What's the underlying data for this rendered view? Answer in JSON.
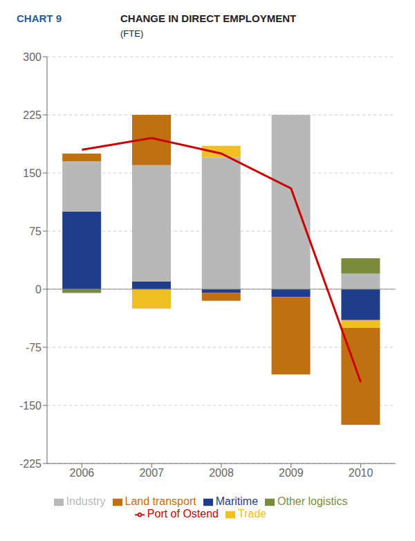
{
  "chart_data": {
    "type": "bar",
    "stacked": true,
    "title": "CHANGE IN DIRECT EMPLOYMENT",
    "subtitle": "(FTE)",
    "annotations": [
      "CHART 9"
    ],
    "categories": [
      "2006",
      "2007",
      "2008",
      "2009",
      "2010"
    ],
    "series": [
      {
        "name": "Maritime",
        "color": "#1F3D8A",
        "values": [
          100,
          10,
          -5,
          -10,
          -40
        ]
      },
      {
        "name": "Industry",
        "color": "#B8B8B8",
        "values": [
          65,
          150,
          170,
          225,
          20
        ]
      },
      {
        "name": "Other logistics",
        "color": "#7A8C3B",
        "values": [
          -5,
          0,
          0,
          0,
          20
        ]
      },
      {
        "name": "Trade",
        "color": "#F0C020",
        "values": [
          0,
          -25,
          15,
          0,
          -10
        ]
      },
      {
        "name": "Land transport",
        "color": "#C07010",
        "values": [
          10,
          65,
          -10,
          -100,
          -125
        ]
      },
      {
        "name": "Port of Ostend",
        "type": "line",
        "color": "#CC0000",
        "values": [
          180,
          195,
          175,
          130,
          -120
        ]
      }
    ],
    "ylim": [
      -225,
      300
    ],
    "yticks": [
      -225,
      -150,
      -75,
      0,
      75,
      150,
      225,
      300
    ],
    "grid": true,
    "legend": "bottom"
  }
}
